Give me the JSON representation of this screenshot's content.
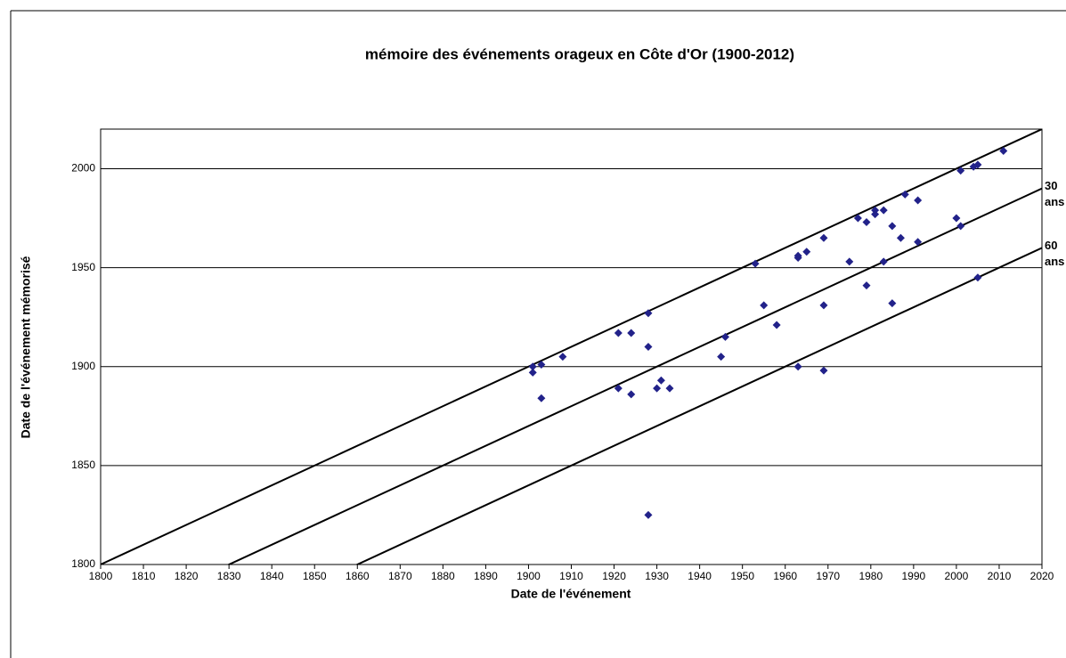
{
  "chart_data": {
    "type": "scatter",
    "title": "mémoire des événements orageux en Côte d'Or (1900-2012)",
    "x_label": "Date de l'événement",
    "y_label": "Date de l'événement mémorisé",
    "color": "#22228a",
    "xlim": [
      1800,
      2020
    ],
    "ylim": [
      1800,
      2020
    ],
    "xticks": [
      1800,
      1810,
      1820,
      1830,
      1840,
      1850,
      1860,
      1870,
      1880,
      1890,
      1900,
      1910,
      1920,
      1930,
      1940,
      1950,
      1960,
      1970,
      1980,
      1990,
      2000,
      2010,
      2020
    ],
    "yticks": [
      1800,
      1850,
      1900,
      1950,
      2000
    ],
    "grid": true,
    "reference_lines": [
      {
        "offset": 0
      },
      {
        "offset": 30,
        "label": [
          "30",
          "ans"
        ]
      },
      {
        "offset": 60,
        "label": [
          "60",
          "ans"
        ]
      }
    ],
    "x": [
      1901,
      1901,
      1903,
      1903,
      1908,
      1921,
      1921,
      1924,
      1924,
      1928,
      1928,
      1928,
      1930,
      1931,
      1933,
      1945,
      1946,
      1953,
      1955,
      1958,
      1963,
      1963,
      1965,
      1963,
      1969,
      1969,
      1969,
      1975,
      1977,
      1979,
      1979,
      1981,
      1981,
      1983,
      1983,
      1985,
      1985,
      1987,
      1988,
      1991,
      1991,
      2000,
      2001,
      2001,
      2004,
      2005,
      2005,
      2011
    ],
    "values": [
      1900,
      1897,
      1901,
      1884,
      1905,
      1917,
      1889,
      1917,
      1886,
      1927,
      1910,
      1825,
      1889,
      1893,
      1889,
      1905,
      1915,
      1952,
      1931,
      1921,
      1956,
      1955,
      1958,
      1900,
      1965,
      1931,
      1898,
      1953,
      1975,
      1973,
      1941,
      1979,
      1977,
      1979,
      1953,
      1971,
      1932,
      1965,
      1987,
      1984,
      1963,
      1975,
      1999,
      1971,
      2001,
      2002,
      1945,
      2009
    ]
  }
}
